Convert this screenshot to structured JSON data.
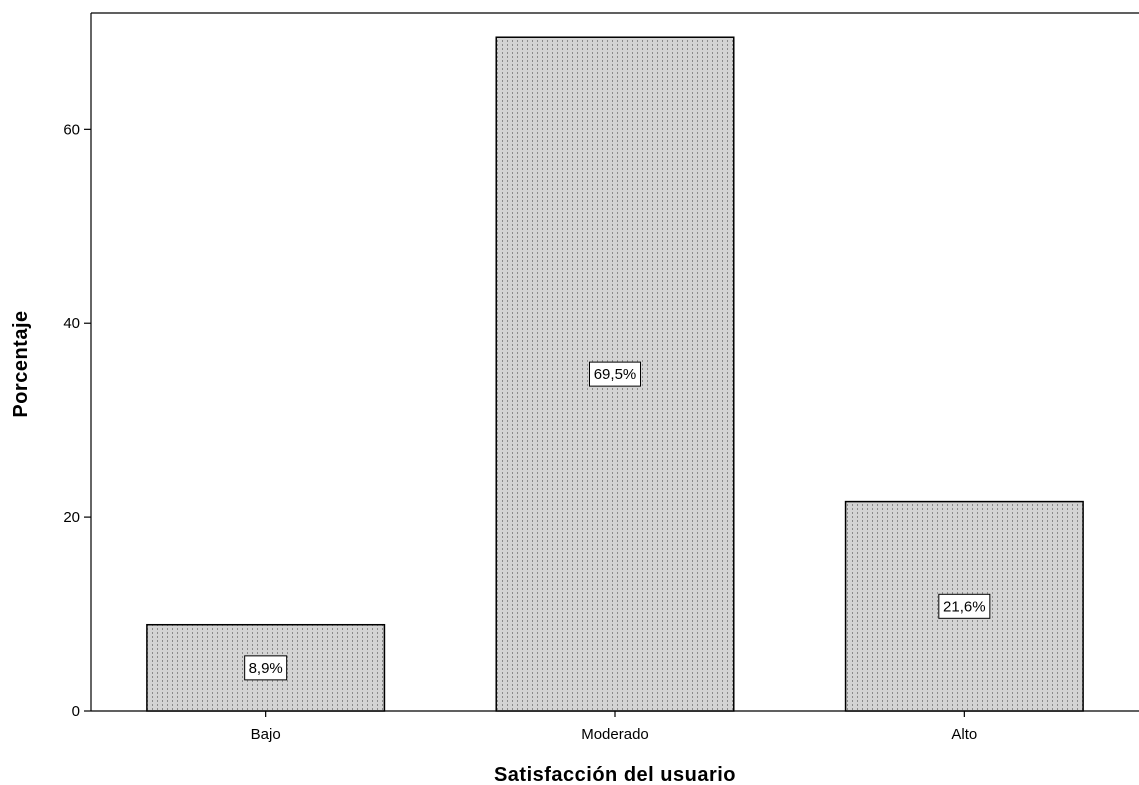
{
  "chart_data": {
    "type": "bar",
    "categories": [
      "Bajo",
      "Moderado",
      "Alto"
    ],
    "values": [
      8.9,
      69.5,
      21.6
    ],
    "data_labels": [
      "8,9%",
      "69,5%",
      "21,6%"
    ],
    "title": "",
    "xlabel": "Satisfacción del usuario",
    "ylabel": "Porcentaje",
    "ylim": [
      0,
      72
    ],
    "yticks": [
      0,
      20,
      40,
      60
    ],
    "ytick_labels": [
      "0",
      "20",
      "40",
      "60"
    ],
    "grid": false,
    "legend": "none",
    "bar_fill_color": "#d4d4d4",
    "bar_pattern_color": "#8a8a8a",
    "bar_border_color": "#000000"
  }
}
